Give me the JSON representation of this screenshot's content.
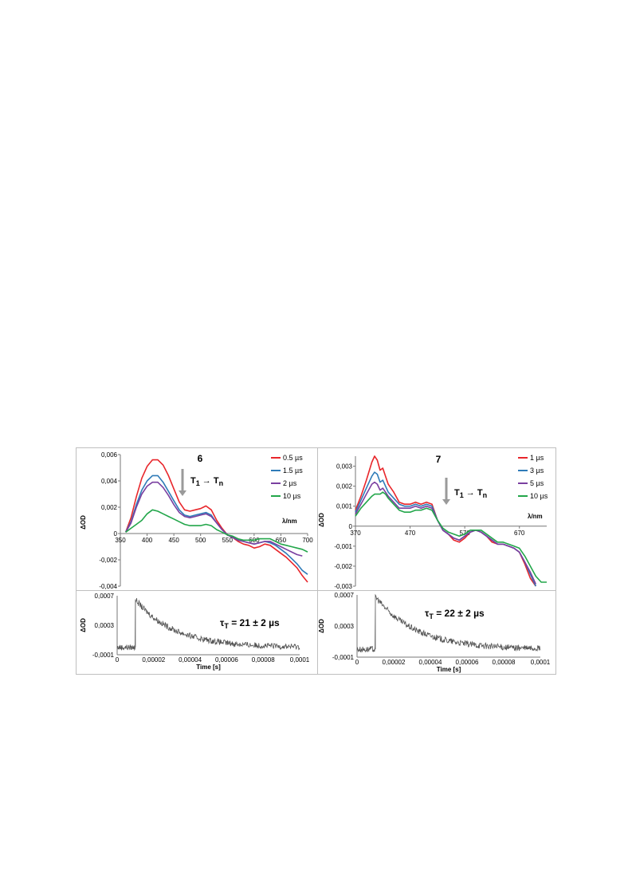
{
  "colors": {
    "red": "#e8262b",
    "blue": "#2f7bb8",
    "purple": "#7a3fa0",
    "green": "#22a64a",
    "trace": "#555555",
    "arrow": "#9a9a9a"
  },
  "chart_data": [
    {
      "type": "line",
      "label": "6",
      "annotation": "T1 → Tn",
      "annotation_parts": [
        "T",
        "1",
        " → T",
        "n"
      ],
      "xlabel": "λ/nm",
      "ylabel": "ΔOD",
      "xlim": [
        350,
        700
      ],
      "ylim": [
        -0.004,
        0.006
      ],
      "x_ticks": [
        "350",
        "400",
        "450",
        "500",
        "550",
        "600",
        "650",
        "700"
      ],
      "y_ticks": [
        "0,006",
        "0,004",
        "0,002",
        "0",
        "-0,002",
        "-0,004"
      ],
      "legend_position": "top-right",
      "series": [
        {
          "name": "0.5 µs",
          "color": "#e8262b",
          "x": [
            360,
            370,
            380,
            390,
            400,
            410,
            420,
            430,
            440,
            450,
            460,
            470,
            480,
            490,
            500,
            510,
            520,
            530,
            540,
            550,
            560,
            570,
            580,
            590,
            600,
            610,
            620,
            630,
            640,
            650,
            660,
            670,
            680,
            690,
            700
          ],
          "y": [
            0.0001,
            0.0012,
            0.0028,
            0.0042,
            0.0051,
            0.0056,
            0.0056,
            0.0052,
            0.0044,
            0.0034,
            0.0024,
            0.0018,
            0.0017,
            0.0018,
            0.0019,
            0.0021,
            0.0018,
            0.001,
            0.0004,
            -0.0001,
            -0.0003,
            -0.0006,
            -0.0008,
            -0.0009,
            -0.0011,
            -0.001,
            -0.0008,
            -0.0009,
            -0.0012,
            -0.0015,
            -0.0018,
            -0.0022,
            -0.0026,
            -0.0032,
            -0.0037
          ]
        },
        {
          "name": "1.5 µs",
          "color": "#2f7bb8",
          "x": [
            360,
            370,
            380,
            390,
            400,
            410,
            420,
            430,
            440,
            450,
            460,
            470,
            480,
            490,
            500,
            510,
            520,
            530,
            540,
            550,
            560,
            570,
            580,
            590,
            600,
            610,
            620,
            630,
            640,
            650,
            660,
            670,
            680,
            690,
            700
          ],
          "y": [
            0.0001,
            0.0009,
            0.0022,
            0.0033,
            0.004,
            0.0044,
            0.0044,
            0.0039,
            0.0032,
            0.0025,
            0.0018,
            0.0014,
            0.0013,
            0.0014,
            0.0015,
            0.0016,
            0.0014,
            0.0008,
            0.0003,
            -0.0001,
            -0.0003,
            -0.0005,
            -0.0006,
            -0.0007,
            -0.0008,
            -0.0007,
            -0.0006,
            -0.0007,
            -0.0009,
            -0.0012,
            -0.0015,
            -0.0019,
            -0.0023,
            -0.0028,
            -0.0031
          ]
        },
        {
          "name": "2 µs",
          "color": "#7a3fa0",
          "x": [
            360,
            370,
            380,
            390,
            400,
            410,
            420,
            430,
            440,
            450,
            460,
            470,
            480,
            490,
            500,
            510,
            520,
            530,
            540,
            550,
            560,
            570,
            580,
            590,
            600,
            610,
            620,
            630,
            640,
            650,
            660,
            670,
            680,
            690
          ],
          "y": [
            0.0001,
            0.0008,
            0.002,
            0.003,
            0.0036,
            0.0039,
            0.0039,
            0.0035,
            0.0029,
            0.0022,
            0.0016,
            0.0013,
            0.0012,
            0.0013,
            0.0014,
            0.0015,
            0.0013,
            0.0008,
            0.0003,
            -0.0001,
            -0.0003,
            -0.0005,
            -0.0006,
            -0.0007,
            -0.0008,
            -0.0007,
            -0.0006,
            -0.0006,
            -0.0008,
            -0.001,
            -0.0012,
            -0.0014,
            -0.0016,
            -0.0017
          ]
        },
        {
          "name": "10 µs",
          "color": "#22a64a",
          "x": [
            360,
            370,
            380,
            390,
            400,
            410,
            420,
            430,
            440,
            450,
            460,
            470,
            480,
            490,
            500,
            510,
            520,
            530,
            540,
            550,
            560,
            570,
            580,
            590,
            600,
            610,
            620,
            630,
            640,
            650,
            660,
            670,
            680,
            690,
            700
          ],
          "y": [
            0.0001,
            0.0004,
            0.0007,
            0.001,
            0.0015,
            0.0018,
            0.0017,
            0.0015,
            0.0013,
            0.0011,
            0.0009,
            0.0007,
            0.0006,
            0.0006,
            0.0006,
            0.0007,
            0.0006,
            0.0003,
            0.0001,
            -0.0001,
            -0.0002,
            -0.0004,
            -0.0005,
            -0.0005,
            -0.0005,
            -0.0004,
            -0.0004,
            -0.0004,
            -0.0006,
            -0.0008,
            -0.0009,
            -0.001,
            -0.0011,
            -0.0012,
            -0.0014
          ]
        }
      ]
    },
    {
      "type": "line",
      "label": "7",
      "annotation": "T1 → Tn",
      "annotation_parts": [
        "T",
        "1",
        " → T",
        "n"
      ],
      "xlabel": "λ/nm",
      "ylabel": "ΔOD",
      "xlim": [
        370,
        720
      ],
      "ylim": [
        -0.003,
        0.0035
      ],
      "x_ticks": [
        "370",
        "470",
        "570",
        "670"
      ],
      "x_tick_values": [
        370,
        470,
        570,
        670
      ],
      "y_ticks": [
        "0,003",
        "0,002",
        "0,001",
        "0",
        "-0,001",
        "-0,002",
        "-0,003"
      ],
      "legend_position": "top-right",
      "series": [
        {
          "name": "1 µs",
          "color": "#e8262b",
          "x": [
            370,
            380,
            390,
            400,
            405,
            410,
            415,
            420,
            425,
            430,
            440,
            450,
            460,
            470,
            480,
            490,
            500,
            510,
            520,
            530,
            540,
            550,
            560,
            570,
            580,
            590,
            600,
            610,
            620,
            630,
            640,
            650,
            660,
            670,
            680,
            690,
            700
          ],
          "y": [
            0.0008,
            0.0015,
            0.0023,
            0.0032,
            0.0035,
            0.0033,
            0.0028,
            0.0029,
            0.0025,
            0.0021,
            0.0017,
            0.0012,
            0.0011,
            0.0011,
            0.0012,
            0.0011,
            0.0012,
            0.0011,
            0.0003,
            -0.0002,
            -0.0004,
            -0.0007,
            -0.0008,
            -0.0006,
            -0.0003,
            -0.0002,
            -0.0003,
            -0.0005,
            -0.0008,
            -0.0009,
            -0.0009,
            -0.001,
            -0.0011,
            -0.0013,
            -0.0019,
            -0.0026,
            -0.003
          ]
        },
        {
          "name": "3 µs",
          "color": "#2f7bb8",
          "x": [
            370,
            380,
            390,
            400,
            405,
            410,
            415,
            420,
            425,
            430,
            440,
            450,
            460,
            470,
            480,
            490,
            500,
            510,
            520,
            530,
            540,
            550,
            560,
            570,
            580,
            590,
            600,
            610,
            620,
            630,
            640,
            650,
            660,
            670,
            680,
            690,
            700
          ],
          "y": [
            0.0007,
            0.0013,
            0.0019,
            0.0025,
            0.0027,
            0.0026,
            0.0022,
            0.0023,
            0.002,
            0.0017,
            0.0014,
            0.0011,
            0.001,
            0.001,
            0.0011,
            0.001,
            0.0011,
            0.001,
            0.0003,
            -0.0002,
            -0.0004,
            -0.0006,
            -0.0007,
            -0.0005,
            -0.0003,
            -0.0002,
            -0.0003,
            -0.0005,
            -0.0007,
            -0.0009,
            -0.0009,
            -0.001,
            -0.0011,
            -0.0013,
            -0.0018,
            -0.0024,
            -0.003
          ]
        },
        {
          "name": "5 µs",
          "color": "#7a3fa0",
          "x": [
            370,
            380,
            390,
            400,
            405,
            410,
            415,
            420,
            425,
            430,
            440,
            450,
            460,
            470,
            480,
            490,
            500,
            510,
            520,
            530,
            540,
            550,
            560,
            570,
            580,
            590,
            600,
            610,
            620,
            630,
            640,
            650,
            660,
            670,
            680,
            690,
            700
          ],
          "y": [
            0.0006,
            0.0011,
            0.0016,
            0.0021,
            0.0022,
            0.0021,
            0.0018,
            0.0019,
            0.0017,
            0.0015,
            0.0012,
            0.0009,
            0.0009,
            0.0009,
            0.001,
            0.0009,
            0.001,
            0.0009,
            0.0003,
            -0.0002,
            -0.0004,
            -0.0006,
            -0.0007,
            -0.0005,
            -0.0003,
            -0.0002,
            -0.0003,
            -0.0005,
            -0.0007,
            -0.0009,
            -0.0009,
            -0.001,
            -0.0011,
            -0.0013,
            -0.0018,
            -0.0023,
            -0.0029
          ]
        },
        {
          "name": "10 µs",
          "color": "#22a64a",
          "x": [
            370,
            380,
            390,
            400,
            405,
            410,
            415,
            420,
            425,
            430,
            440,
            450,
            460,
            470,
            480,
            490,
            500,
            510,
            520,
            530,
            540,
            550,
            560,
            570,
            580,
            590,
            600,
            610,
            620,
            630,
            640,
            650,
            660,
            670,
            680,
            690,
            700,
            710,
            720
          ],
          "y": [
            0.0005,
            0.0009,
            0.0012,
            0.0015,
            0.0016,
            0.0016,
            0.0016,
            0.0017,
            0.0016,
            0.0014,
            0.0011,
            0.0008,
            0.0007,
            0.0007,
            0.0008,
            0.0008,
            0.0009,
            0.0008,
            0.0003,
            -0.0001,
            -0.0003,
            -0.0004,
            -0.0005,
            -0.0004,
            -0.0002,
            -0.0002,
            -0.0002,
            -0.0004,
            -0.0006,
            -0.0008,
            -0.0008,
            -0.0009,
            -0.001,
            -0.0011,
            -0.0015,
            -0.002,
            -0.0025,
            -0.0028,
            -0.0028
          ]
        }
      ]
    },
    {
      "type": "line",
      "label": "τT = 21 ± 2 µs",
      "label_parts": [
        "τ",
        "T",
        " = 21 ± 2 µs"
      ],
      "xlabel": "Time [s]",
      "ylabel": "ΔOD",
      "xlim": [
        0,
        0.0001
      ],
      "ylim": [
        -0.0001,
        0.0007
      ],
      "x_ticks": [
        "0",
        "0,00002",
        "0,00004",
        "0,00006",
        "0,00008",
        "0,0001"
      ],
      "y_ticks": [
        "0,0007",
        "0,0003",
        "-0,0001"
      ],
      "series": [
        {
          "name": "",
          "color": "#555555",
          "pulse_time": 1e-05,
          "baseline": 0.0,
          "peak": 0.00065,
          "tau": 2.1e-05,
          "noise": 4e-05
        }
      ]
    },
    {
      "type": "line",
      "label": "τT = 22 ± 2 µs",
      "label_parts": [
        "τ",
        "T",
        " = 22 ± 2 µs"
      ],
      "xlabel": "Time [s]",
      "ylabel": "ΔOD",
      "xlim": [
        0,
        0.0001
      ],
      "ylim": [
        -0.0001,
        0.0007
      ],
      "x_ticks": [
        "0",
        "0,00002",
        "0,00004",
        "0,00006",
        "0,00008",
        "0,0001"
      ],
      "y_ticks": [
        "0,0007",
        "0,0003",
        "-0,0001"
      ],
      "series": [
        {
          "name": "",
          "color": "#555555",
          "pulse_time": 1e-05,
          "baseline": 0.0,
          "peak": 0.00068,
          "tau": 2.2e-05,
          "noise": 4e-05
        }
      ]
    }
  ]
}
